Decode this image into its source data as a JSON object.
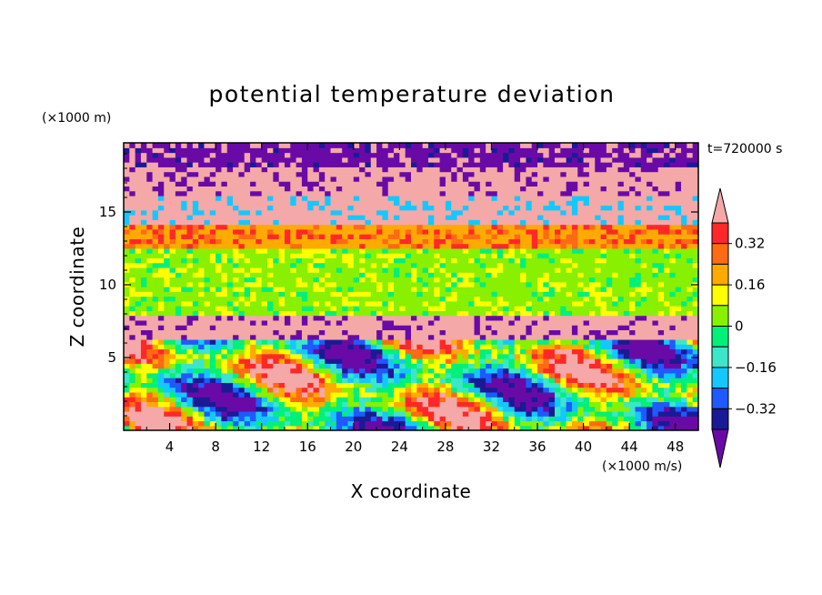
{
  "chart_data": {
    "type": "heatmap",
    "title": "potential temperature deviation",
    "xlabel": "X coordinate",
    "ylabel": "Z coordinate",
    "x_units": "(×1000 m/s)",
    "y_units": "(×1000 m)",
    "time_label": "t=720000 s",
    "xlim": [
      0,
      50
    ],
    "ylim": [
      0,
      19.75
    ],
    "x_ticks": [
      "4",
      "8",
      "12",
      "16",
      "20",
      "24",
      "28",
      "32",
      "36",
      "40",
      "44",
      "48"
    ],
    "y_ticks": [
      "5",
      "10",
      "15"
    ],
    "colorbar": {
      "levels": [
        -0.4,
        -0.32,
        -0.24,
        -0.16,
        -0.08,
        0,
        0.08,
        0.16,
        0.24,
        0.32,
        0.4
      ],
      "tick_labels": [
        "0.32",
        "0.16",
        "0",
        "−0.16",
        "−0.32"
      ],
      "colors": [
        "#6a0aa6",
        "#1a1a96",
        "#1e5aff",
        "#14c8ff",
        "#3ce6c8",
        "#00f07a",
        "#88f000",
        "#ffff00",
        "#ffaa00",
        "#ff6a14",
        "#ff2828",
        "#f4a8a8"
      ],
      "extend": "both"
    },
    "layers": [
      {
        "z_range": [
          18.2,
          19.75
        ],
        "dominant_value": -0.45,
        "mix_value": 0.45
      },
      {
        "z_range": [
          16.2,
          18.2
        ],
        "dominant_value": 0.45,
        "mix_value": -0.45
      },
      {
        "z_range": [
          14.0,
          16.2
        ],
        "dominant_value": 0.45,
        "mix_value": -0.2
      },
      {
        "z_range": [
          12.5,
          14.0
        ],
        "dominant_value": 0.2,
        "mix_value": 0.35
      },
      {
        "z_range": [
          7.8,
          12.5
        ],
        "dominant_value": 0.02,
        "mix_value": 0.1
      },
      {
        "z_range": [
          6.2,
          7.8
        ],
        "dominant_value": 0.45,
        "mix_value": -0.45
      },
      {
        "z_range": [
          0,
          6.2
        ],
        "dominant_value": -0.05,
        "mix_value": 0.3
      }
    ]
  }
}
